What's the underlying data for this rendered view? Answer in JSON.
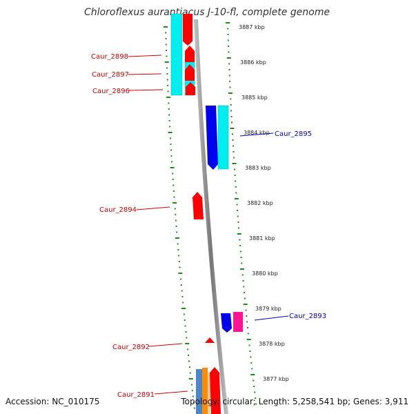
{
  "title": "Chloroflexus aurantiacus J-10-fl, complete genome",
  "footer": {
    "accession": "Accession: NC_010175",
    "summary": "Topology: circular; Length: 5,258,541 bp; Genes: 3,911"
  },
  "colors": {
    "forward_gene": "#ff0000",
    "reverse_gene": "#0000ee",
    "cds_cyan": "#00eeee",
    "magenta": "#ff1493",
    "steelblue": "#4a86c8",
    "orange": "#ff8c00",
    "tick": "#1a8a1a",
    "backbone": "#888888"
  },
  "ticks": [
    "3887 kbp",
    "3886 kbp",
    "3885 kbp",
    "3884 kbp",
    "3883 kbp",
    "3882 kbp",
    "3881 kbp",
    "3880 kbp",
    "3879 kbp",
    "3878 kbp",
    "3877 kbp"
  ],
  "gene_labels": [
    {
      "id": "Caur_2898",
      "strand": "forward"
    },
    {
      "id": "Caur_2897",
      "strand": "forward"
    },
    {
      "id": "Caur_2896",
      "strand": "forward"
    },
    {
      "id": "Caur_2895",
      "strand": "reverse"
    },
    {
      "id": "Caur_2894",
      "strand": "forward"
    },
    {
      "id": "Caur_2893",
      "strand": "reverse"
    },
    {
      "id": "Caur_2892",
      "strand": "forward"
    },
    {
      "id": "Caur_2891",
      "strand": "forward"
    }
  ]
}
